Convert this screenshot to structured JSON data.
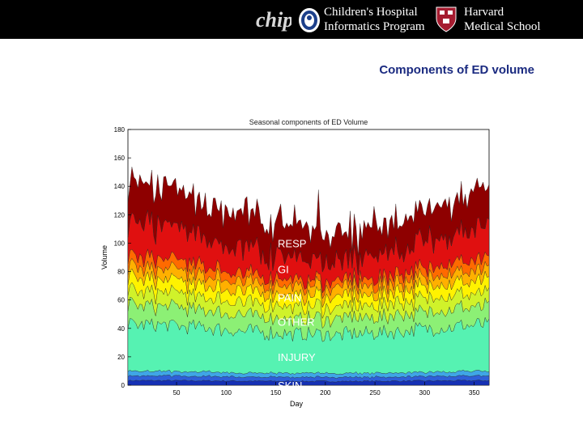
{
  "header": {
    "logo_text": "chip",
    "org_line1": "Children's Hospital",
    "org_line2": "Informatics Program",
    "school_line1": "Harvard",
    "school_line2": "Medical School",
    "bar_color": "#000000"
  },
  "slide": {
    "title": "Components of ED volume",
    "title_color": "#1a2a80"
  },
  "chart_data": {
    "type": "area",
    "title": "Seasonal components of ED Volume",
    "xlabel": "Day",
    "ylabel": "Volume",
    "xlim": [
      1,
      365
    ],
    "ylim": [
      0,
      180
    ],
    "xticks": [
      50,
      100,
      150,
      200,
      250,
      300,
      350
    ],
    "yticks": [
      0,
      20,
      40,
      60,
      80,
      100,
      120,
      140,
      160,
      180
    ],
    "grid": false,
    "stacked": true,
    "series_stack_bottom_to_top": [
      {
        "name": "SKIN",
        "approx_level": 3,
        "color": "#1530b5"
      },
      {
        "name": "",
        "approx_level": 3,
        "color": "#2f5fd8"
      },
      {
        "name": "",
        "approx_level": 3,
        "color": "#3fa6e6"
      },
      {
        "name": "INJURY",
        "approx_level": 30,
        "color": "#56f2b2"
      },
      {
        "name": "OTHER",
        "approx_level": 12,
        "color": "#8cf075"
      },
      {
        "name": "PAIN",
        "approx_level": 9,
        "color": "#d0f22a"
      },
      {
        "name": "",
        "approx_level": 8,
        "color": "#fff200"
      },
      {
        "name": "",
        "approx_level": 7,
        "color": "#ffb000"
      },
      {
        "name": "GI",
        "approx_level": 6,
        "color": "#ff6a00"
      },
      {
        "name": "RESP",
        "approx_level": 18,
        "color": "#e01010"
      },
      {
        "name": "",
        "approx_level": 21,
        "color": "#8e0000"
      }
    ],
    "annotations": [
      "RESP",
      "GI",
      "PAIN",
      "OTHER",
      "INJURY",
      "SKIN"
    ],
    "top_label_partial": "SKIN"
  }
}
